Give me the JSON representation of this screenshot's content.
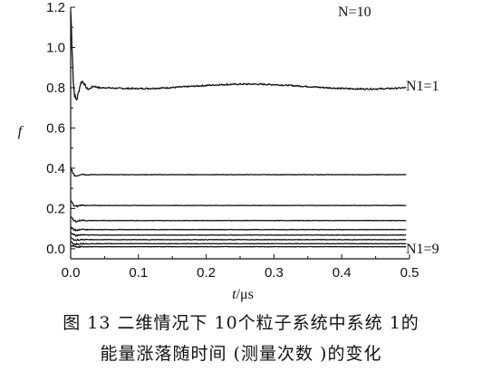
{
  "chart_data": {
    "type": "line",
    "ylabel": "f",
    "xlabel_var": "t",
    "xlabel_unit": "/μs",
    "xlim": [
      0,
      0.5
    ],
    "ylim": [
      -0.05,
      1.2
    ],
    "xticks": [
      0.0,
      0.1,
      0.2,
      0.3,
      0.4,
      0.5
    ],
    "xtick_labels": [
      "0.0",
      "0.1",
      "0.2",
      "0.3",
      "0.4",
      "0.5"
    ],
    "yticks": [
      0.0,
      0.2,
      0.4,
      0.6,
      0.8,
      1.0,
      1.2
    ],
    "ytick_labels": [
      "0.0",
      "0.2",
      "0.4",
      "0.6",
      "0.8",
      "1.0",
      "1.2"
    ],
    "annotations": {
      "top": "N=10",
      "first": "N1=1",
      "last": "N1=9"
    },
    "series": [
      {
        "label": "N1=1",
        "level": 0.806,
        "spike": 1.18
      },
      {
        "label": "",
        "level": 0.368,
        "spike": 0.4
      },
      {
        "label": "",
        "level": 0.215,
        "spike": 0.24
      },
      {
        "label": "",
        "level": 0.14,
        "spike": 0.16
      },
      {
        "label": "",
        "level": 0.095,
        "spike": 0.11
      },
      {
        "label": "",
        "level": 0.068,
        "spike": 0.08
      },
      {
        "label": "",
        "level": 0.045,
        "spike": 0.055
      },
      {
        "label": "",
        "level": 0.025,
        "spike": 0.035
      },
      {
        "label": "N1=9",
        "level": 0.01,
        "spike": 0.015
      }
    ]
  },
  "caption": {
    "line1": "图 13  二维情况下 10个粒子系统中系统 1的",
    "line2": "能量涨落随时间 (测量次数 )的变化"
  }
}
